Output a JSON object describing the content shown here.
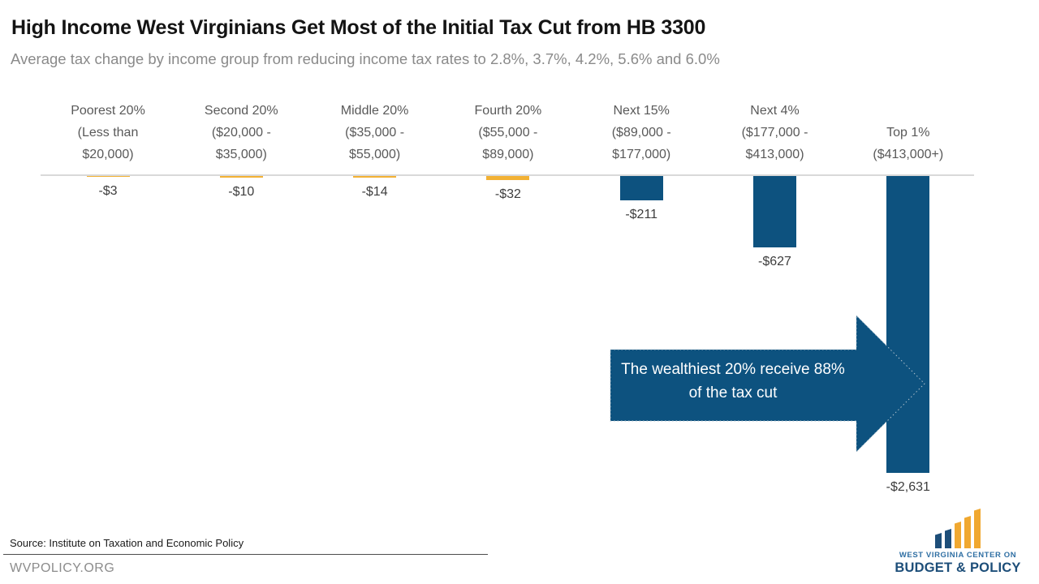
{
  "chart_data": {
    "type": "bar",
    "title": "High Income West Virginians Get Most of the Initial Tax Cut from HB 3300",
    "subtitle": "Average tax change by income group from reducing income tax rates to 2.8%, 3.7%, 4.2%, 5.6% and 6.0%",
    "categories": [
      "Poorest 20% (Less than $20,000)",
      "Second 20% ($20,000 - $35,000)",
      "Middle 20% ($35,000 - $55,000)",
      "Fourth 20% ($55,000 - $89,000)",
      "Next 15% ($89,000 - $177,000)",
      "Next 4% ($177,000 - $413,000)",
      "Top 1% ($413,000+)"
    ],
    "values": [
      -3,
      -10,
      -14,
      -32,
      -211,
      -627,
      -2631
    ],
    "groups": [
      {
        "label_lines": [
          "Poorest 20%",
          "(Less than",
          "$20,000)"
        ],
        "value": -3,
        "value_label": "-$3",
        "color": "gold"
      },
      {
        "label_lines": [
          "Second 20%",
          "($20,000 -",
          "$35,000)"
        ],
        "value": -10,
        "value_label": "-$10",
        "color": "gold"
      },
      {
        "label_lines": [
          "Middle 20%",
          "($35,000 -",
          "$55,000)"
        ],
        "value": -14,
        "value_label": "-$14",
        "color": "gold"
      },
      {
        "label_lines": [
          "Fourth 20%",
          "($55,000 -",
          "$89,000)"
        ],
        "value": -32,
        "value_label": "-$32",
        "color": "gold"
      },
      {
        "label_lines": [
          "Next 15%",
          "($89,000 -",
          "$177,000)"
        ],
        "value": -211,
        "value_label": "-$211",
        "color": "blue"
      },
      {
        "label_lines": [
          "Next 4%",
          "($177,000 -",
          "$413,000)"
        ],
        "value": -627,
        "value_label": "-$627",
        "color": "blue"
      },
      {
        "label_lines": [
          "Top 1%",
          "($413,000+)"
        ],
        "value": -2631,
        "value_label": "-$2,631",
        "color": "blue"
      }
    ],
    "bar_colors": {
      "gold": "#F2B134",
      "blue": "#0D527F"
    },
    "baseline_value": 0,
    "ylim": [
      -2700,
      0
    ],
    "grid": false,
    "legend": "none",
    "annotation": "The wealthiest 20% receive 88% of the tax cut"
  },
  "annotation": {
    "line1": "The wealthiest 20% receive 88%",
    "line2": "of the tax cut"
  },
  "source": "Source: Institute on Taxation and Economic Policy",
  "footer_url": "WVPOLICY.ORG",
  "logo": {
    "line1": "WEST VIRGINIA CENTER ON",
    "line2": "BUDGET & POLICY",
    "navy": "#1d4e79",
    "gold": "#f0a830"
  },
  "colors": {
    "arrow_fill": "#0D527F",
    "arrow_dotted_edge": "#aebfca",
    "baseline": "#d9d9d9"
  }
}
